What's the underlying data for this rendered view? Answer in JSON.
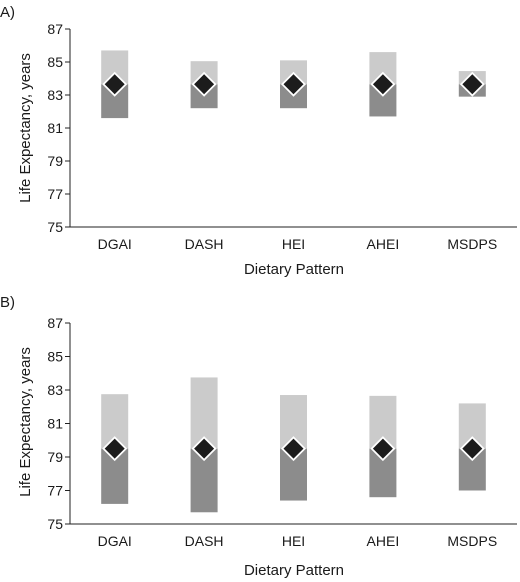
{
  "chart_data": [
    {
      "type": "bar",
      "panel_label": "A)",
      "categories": [
        "DGAI",
        "DASH",
        "HEI",
        "AHEI",
        "MSDPS"
      ],
      "series": [
        {
          "values": [
            81.6,
            82.2,
            82.2,
            81.7,
            82.9
          ]
        },
        {
          "values": [
            83.65,
            83.65,
            83.65,
            83.65,
            83.65
          ]
        },
        {
          "values": [
            85.7,
            85.05,
            85.1,
            85.6,
            84.45
          ]
        }
      ],
      "xlabel": "Dietary Pattern",
      "ylabel": "Life Expectancy, years",
      "ylim": [
        75,
        87
      ],
      "yticks": [
        75,
        77,
        79,
        81,
        83,
        85,
        87
      ],
      "grid": false,
      "colors": {
        "upper": "#cbcbcb",
        "lower": "#8c8c8c",
        "marker": "#1c1c1c"
      }
    },
    {
      "type": "bar",
      "panel_label": "B)",
      "categories": [
        "DGAI",
        "DASH",
        "HEI",
        "AHEI",
        "MSDPS"
      ],
      "series": [
        {
          "values": [
            76.2,
            75.7,
            76.4,
            76.6,
            77.0
          ]
        },
        {
          "values": [
            79.5,
            79.5,
            79.5,
            79.5,
            79.5
          ]
        },
        {
          "values": [
            82.75,
            83.75,
            82.7,
            82.65,
            82.2
          ]
        }
      ],
      "xlabel": "Dietary Pattern",
      "ylabel": "Life Expectancy, years",
      "ylim": [
        75,
        87
      ],
      "yticks": [
        75,
        77,
        79,
        81,
        83,
        85,
        87
      ],
      "grid": false,
      "colors": {
        "upper": "#cbcbcb",
        "lower": "#8c8c8c",
        "marker": "#1c1c1c"
      }
    }
  ]
}
